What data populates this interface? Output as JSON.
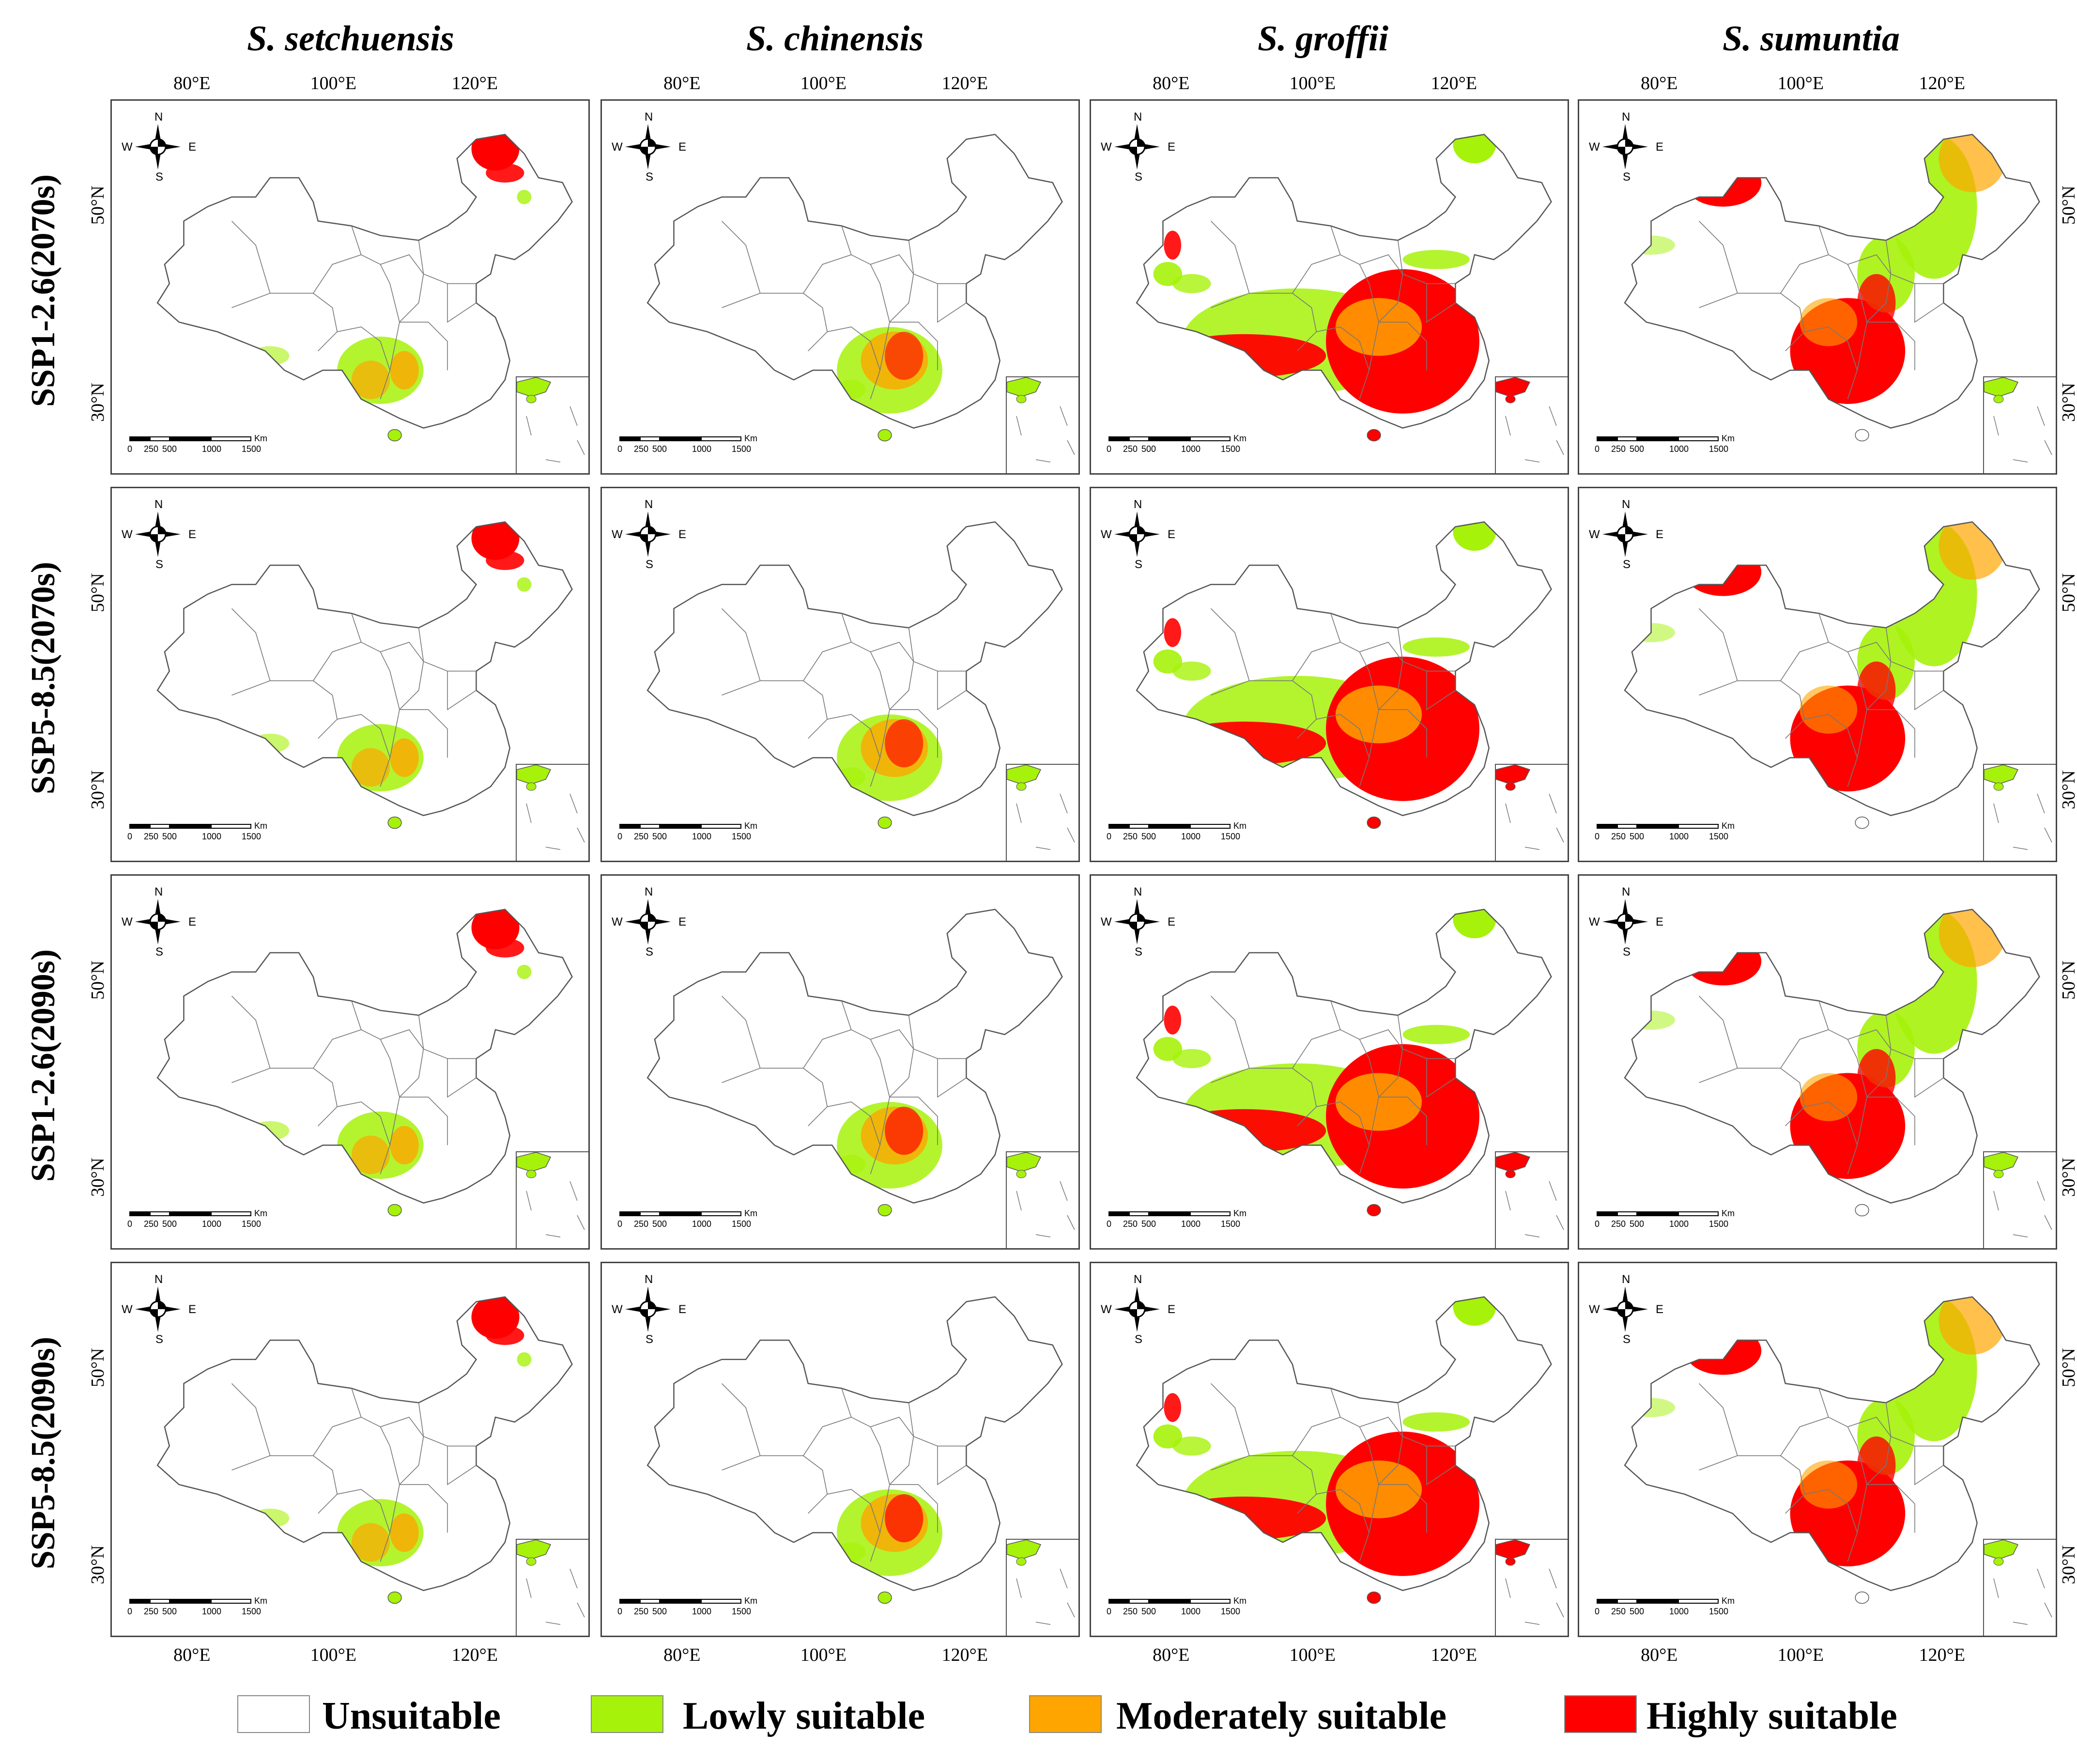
{
  "columns": [
    {
      "title": "S. setchuensis"
    },
    {
      "title": "S. chinensis"
    },
    {
      "title": "S. groffii"
    },
    {
      "title": "S. sumuntia"
    }
  ],
  "rows": [
    {
      "label": "SSP1-2.6(2070s)"
    },
    {
      "label": "SSP5-8.5(2070s)"
    },
    {
      "label": "SSP1-2.6(2090s)"
    },
    {
      "label": "SSP5-8.5(2090s)"
    }
  ],
  "longitude_ticks": [
    "80°E",
    "100°E",
    "120°E"
  ],
  "latitude_ticks": [
    "50°N",
    "30°N"
  ],
  "compass": {
    "n": "N",
    "s": "S",
    "w": "W",
    "e": "E"
  },
  "scale_bar": {
    "unit": "Km",
    "labels": [
      "0",
      "250",
      "500",
      "1000",
      "1500"
    ]
  },
  "legend": [
    {
      "label": "Unsuitable",
      "color": "#ffffff"
    },
    {
      "label": "Lowly suitable",
      "color": "#a6f20a"
    },
    {
      "label": "Moderately suitable",
      "color": "#ffa500"
    },
    {
      "label": "Highly suitable",
      "color": "#ff0000"
    }
  ],
  "suitability_pattern": {
    "S. setchuensis": "highly suitable in far northeast; low-to-moderate in south-east China",
    "S. chinensis": "mostly lowly suitable in south-east with moderate/high patches",
    "S. groffii": "highly suitable across south/south-east China and southern Tibet; low elsewhere",
    "S. sumuntia": "highly suitable in central-south and northwest (Xinjiang); low along northeast"
  }
}
